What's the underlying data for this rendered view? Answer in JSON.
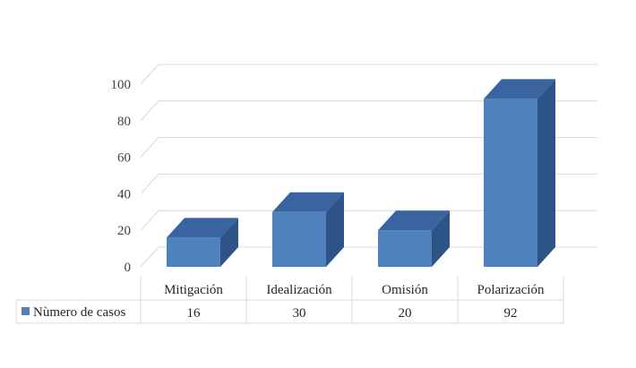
{
  "chart_data": {
    "type": "bar",
    "style": "3d-column-with-data-table",
    "categories": [
      "Mitigación",
      "Idealización",
      "Omisión",
      "Polarización"
    ],
    "series": [
      {
        "name": "Nùmero de casos",
        "values": [
          16,
          30,
          20,
          92
        ],
        "color": "#4f81bd"
      }
    ],
    "y_ticks": [
      0,
      20,
      40,
      60,
      80,
      100
    ],
    "ylim": [
      0,
      100
    ],
    "grid": true,
    "legend": "data-table-left",
    "colors": {
      "front": "#4f81bd",
      "side": "#2e5386",
      "top": "#3a64a0",
      "grid": "#d9d9d9",
      "table_border": "#d9d9d9"
    }
  }
}
